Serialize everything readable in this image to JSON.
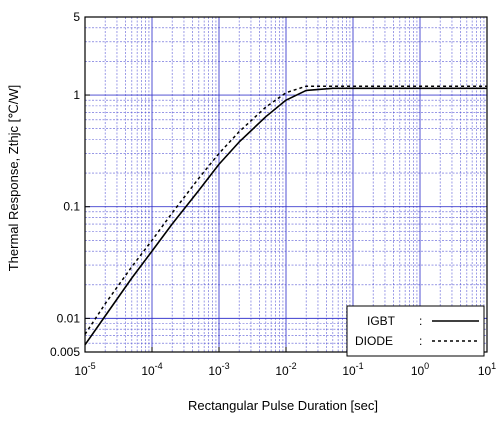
{
  "chart_data": {
    "type": "line",
    "title": "",
    "xlabel": "Rectangular Pulse Duration [sec]",
    "ylabel": "Thermal Response, Zthjc [℃/W]",
    "x_scale": "log",
    "y_scale": "log",
    "xlim": [
      1e-05,
      10
    ],
    "ylim": [
      0.005,
      5
    ],
    "grid": true,
    "legend_position": "bottom-right",
    "x_ticks": [
      {
        "value": 1e-05,
        "base": "10",
        "exp": "-5"
      },
      {
        "value": 0.0001,
        "base": "10",
        "exp": "-4"
      },
      {
        "value": 0.001,
        "base": "10",
        "exp": "-3"
      },
      {
        "value": 0.01,
        "base": "10",
        "exp": "-2"
      },
      {
        "value": 0.1,
        "base": "10",
        "exp": "-1"
      },
      {
        "value": 1,
        "base": "10",
        "exp": "0"
      },
      {
        "value": 10,
        "base": "10",
        "exp": "1"
      }
    ],
    "y_ticks": [
      {
        "value": 0.005,
        "label": "0.005"
      },
      {
        "value": 0.01,
        "label": "0.01"
      },
      {
        "value": 0.1,
        "label": "0.1"
      },
      {
        "value": 1,
        "label": "1"
      },
      {
        "value": 5,
        "label": "5"
      }
    ],
    "colors": {
      "grid": "#3333cc",
      "axis": "#000000",
      "igbt": "#000000",
      "diode": "#000000"
    },
    "series": [
      {
        "name": "IGBT",
        "legend_label": "IGBT",
        "legend_sep": ":",
        "style": "solid",
        "x": [
          1e-05,
          2e-05,
          5e-05,
          0.0001,
          0.0002,
          0.0005,
          0.001,
          0.002,
          0.005,
          0.01,
          0.02,
          0.05,
          0.1,
          0.2,
          0.5,
          1,
          2,
          5,
          10
        ],
        "y": [
          0.0058,
          0.0105,
          0.023,
          0.04,
          0.07,
          0.14,
          0.24,
          0.38,
          0.64,
          0.9,
          1.1,
          1.15,
          1.15,
          1.15,
          1.15,
          1.15,
          1.15,
          1.15,
          1.15
        ]
      },
      {
        "name": "DIODE",
        "legend_label": "DIODE",
        "legend_sep": ":",
        "style": "dotted",
        "x": [
          1e-05,
          2e-05,
          5e-05,
          0.0001,
          0.0002,
          0.0005,
          0.001,
          0.002,
          0.005,
          0.01,
          0.02,
          0.05,
          0.1,
          0.2,
          0.5,
          1,
          2,
          5,
          10
        ],
        "y": [
          0.0072,
          0.0135,
          0.029,
          0.05,
          0.088,
          0.18,
          0.3,
          0.47,
          0.78,
          1.05,
          1.2,
          1.2,
          1.2,
          1.2,
          1.2,
          1.2,
          1.2,
          1.2,
          1.2
        ]
      }
    ]
  }
}
